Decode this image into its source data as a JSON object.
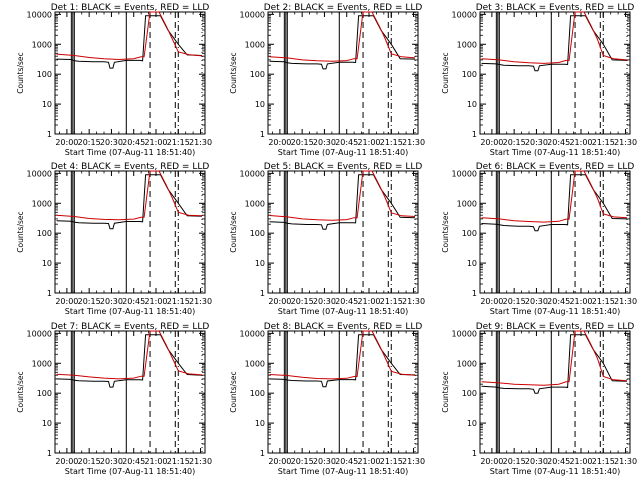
{
  "chart_data": [
    {
      "type": "line",
      "title": "Det 1: BLACK = Events, RED = LLD",
      "xlabel": "Start Time (07-Aug-11 18:51:40)",
      "ylabel": "Counts/sec",
      "x_ticks": [
        "20:00",
        "20:15",
        "20:30",
        "20:45",
        "21:00",
        "21:15",
        "21:30"
      ],
      "y_ticks": [
        "1",
        "10",
        "100",
        "1000",
        "10000"
      ],
      "xlim": [
        "19:52",
        "21:33"
      ],
      "ylim": [
        1,
        12000
      ],
      "y_scale": "log",
      "grid": false,
      "series": [
        {
          "color": "#000000",
          "x": [
            "19:53",
            "20:03",
            "20:05",
            "20:08",
            "20:18",
            "20:25",
            "20:28",
            "20:29",
            "20:31",
            "20:32",
            "20:40",
            "20:49",
            "20:51",
            "20:53",
            "21:03",
            "21:08",
            "21:15",
            "21:21",
            "21:31"
          ],
          "y": [
            320,
            310,
            280,
            270,
            260,
            260,
            250,
            160,
            160,
            250,
            290,
            290,
            280,
            9000,
            9000,
            3000,
            1000,
            440,
            420
          ]
        },
        {
          "color": "#cc0000",
          "x": [
            "19:53",
            "20:05",
            "20:15",
            "20:25",
            "20:35",
            "20:45",
            "20:50",
            "20:52",
            "20:56",
            "21:02",
            "21:07",
            "21:11",
            "21:15",
            "21:22",
            "21:31"
          ],
          "y": [
            470,
            420,
            360,
            330,
            310,
            330,
            380,
            380,
            14000,
            14000,
            4000,
            1500,
            560,
            450,
            410
          ]
        }
      ]
    },
    {
      "type": "line",
      "title": "Det 2: BLACK = Events, RED = LLD",
      "xlabel": "Start Time (07-Aug-11 18:51:40)",
      "ylabel": "Counts/sec",
      "x_ticks": [
        "20:00",
        "20:15",
        "20:30",
        "20:45",
        "21:00",
        "21:15",
        "21:30"
      ],
      "y_ticks": [
        "1",
        "10",
        "100",
        "1000",
        "10000"
      ],
      "xlim": [
        "19:52",
        "21:33"
      ],
      "ylim": [
        1,
        12000
      ],
      "y_scale": "log",
      "grid": false,
      "series": [
        {
          "color": "#000000",
          "x": [
            "19:53",
            "20:03",
            "20:05",
            "20:08",
            "20:18",
            "20:25",
            "20:28",
            "20:29",
            "20:31",
            "20:32",
            "20:40",
            "20:49",
            "20:51",
            "20:53",
            "21:03",
            "21:08",
            "21:15",
            "21:21",
            "21:31"
          ],
          "y": [
            270,
            260,
            240,
            230,
            220,
            220,
            215,
            150,
            150,
            220,
            250,
            250,
            245,
            9000,
            9000,
            3000,
            1000,
            330,
            320
          ]
        },
        {
          "color": "#cc0000",
          "x": [
            "19:53",
            "20:05",
            "20:15",
            "20:25",
            "20:35",
            "20:45",
            "20:50",
            "20:52",
            "20:56",
            "21:02",
            "21:07",
            "21:11",
            "21:15",
            "21:22",
            "21:31"
          ],
          "y": [
            380,
            350,
            300,
            280,
            270,
            285,
            330,
            330,
            14000,
            14000,
            4000,
            1500,
            480,
            380,
            350
          ]
        }
      ]
    },
    {
      "type": "line",
      "title": "Det 3: BLACK = Events, RED = LLD",
      "xlabel": "Start Time (07-Aug-11 18:51:40)",
      "ylabel": "Counts/sec",
      "x_ticks": [
        "20:00",
        "20:15",
        "20:30",
        "20:45",
        "21:00",
        "21:15",
        "21:30"
      ],
      "y_ticks": [
        "1",
        "10",
        "100",
        "1000",
        "10000"
      ],
      "xlim": [
        "19:52",
        "21:33"
      ],
      "ylim": [
        1,
        12000
      ],
      "y_scale": "log",
      "grid": false,
      "series": [
        {
          "color": "#000000",
          "x": [
            "19:53",
            "20:03",
            "20:05",
            "20:08",
            "20:18",
            "20:25",
            "20:28",
            "20:29",
            "20:31",
            "20:32",
            "20:40",
            "20:49",
            "20:51",
            "20:53",
            "21:03",
            "21:08",
            "21:15",
            "21:21",
            "21:31"
          ],
          "y": [
            230,
            220,
            210,
            200,
            190,
            190,
            185,
            130,
            130,
            190,
            215,
            215,
            210,
            9000,
            9000,
            3000,
            1000,
            300,
            290
          ]
        },
        {
          "color": "#cc0000",
          "x": [
            "19:53",
            "20:05",
            "20:15",
            "20:25",
            "20:35",
            "20:45",
            "20:50",
            "20:52",
            "20:56",
            "21:02",
            "21:07",
            "21:11",
            "21:15",
            "21:22",
            "21:31"
          ],
          "y": [
            330,
            300,
            260,
            240,
            230,
            245,
            290,
            290,
            14000,
            14000,
            4000,
            1500,
            420,
            330,
            300
          ]
        }
      ]
    },
    {
      "type": "line",
      "title": "Det 4: BLACK = Events, RED = LLD",
      "xlabel": "Start Time (07-Aug-11 18:51:40)",
      "ylabel": "Counts/sec",
      "x_ticks": [
        "20:00",
        "20:15",
        "20:30",
        "20:45",
        "21:00",
        "21:15",
        "21:30"
      ],
      "y_ticks": [
        "1",
        "10",
        "100",
        "1000",
        "10000"
      ],
      "xlim": [
        "19:52",
        "21:33"
      ],
      "ylim": [
        1,
        12000
      ],
      "y_scale": "log",
      "grid": false,
      "series": [
        {
          "color": "#000000",
          "x": [
            "19:53",
            "20:03",
            "20:05",
            "20:08",
            "20:18",
            "20:25",
            "20:28",
            "20:29",
            "20:31",
            "20:32",
            "20:40",
            "20:49",
            "20:51",
            "20:53",
            "21:03",
            "21:08",
            "21:15",
            "21:21",
            "21:31"
          ],
          "y": [
            260,
            250,
            235,
            225,
            215,
            215,
            210,
            140,
            140,
            215,
            245,
            245,
            240,
            9000,
            9000,
            3000,
            1000,
            380,
            370
          ]
        },
        {
          "color": "#cc0000",
          "x": [
            "19:53",
            "20:05",
            "20:15",
            "20:25",
            "20:35",
            "20:45",
            "20:50",
            "20:52",
            "20:56",
            "21:02",
            "21:07",
            "21:11",
            "21:15",
            "21:22",
            "21:31"
          ],
          "y": [
            400,
            360,
            310,
            290,
            280,
            295,
            340,
            340,
            14000,
            14000,
            4000,
            1500,
            500,
            400,
            380
          ]
        }
      ]
    },
    {
      "type": "line",
      "title": "Det 5: BLACK = Events, RED = LLD",
      "xlabel": "Start Time (07-Aug-11 18:51:40)",
      "ylabel": "Counts/sec",
      "x_ticks": [
        "20:00",
        "20:15",
        "20:30",
        "20:45",
        "21:00",
        "21:15",
        "21:30"
      ],
      "y_ticks": [
        "1",
        "10",
        "100",
        "1000",
        "10000"
      ],
      "xlim": [
        "19:52",
        "21:33"
      ],
      "ylim": [
        1,
        12000
      ],
      "y_scale": "log",
      "grid": false,
      "series": [
        {
          "color": "#000000",
          "x": [
            "19:53",
            "20:03",
            "20:05",
            "20:08",
            "20:18",
            "20:25",
            "20:28",
            "20:29",
            "20:31",
            "20:32",
            "20:40",
            "20:49",
            "20:51",
            "20:53",
            "21:03",
            "21:08",
            "21:15",
            "21:21",
            "21:31"
          ],
          "y": [
            240,
            230,
            215,
            205,
            195,
            195,
            190,
            135,
            135,
            195,
            225,
            225,
            220,
            9000,
            9000,
            3000,
            1000,
            340,
            330
          ]
        },
        {
          "color": "#cc0000",
          "x": [
            "19:53",
            "20:05",
            "20:15",
            "20:25",
            "20:35",
            "20:45",
            "20:50",
            "20:52",
            "20:56",
            "21:02",
            "21:07",
            "21:11",
            "21:15",
            "21:22",
            "21:31"
          ],
          "y": [
            390,
            350,
            300,
            280,
            270,
            285,
            330,
            330,
            14000,
            14000,
            4000,
            1500,
            480,
            380,
            360
          ]
        }
      ]
    },
    {
      "type": "line",
      "title": "Det 6: BLACK = Events, RED = LLD",
      "xlabel": "Start Time (07-Aug-11 18:51:40)",
      "ylabel": "Counts/sec",
      "x_ticks": [
        "20:00",
        "20:15",
        "20:30",
        "20:45",
        "21:00",
        "21:15",
        "21:30"
      ],
      "y_ticks": [
        "1",
        "10",
        "100",
        "1000",
        "10000"
      ],
      "xlim": [
        "19:52",
        "21:33"
      ],
      "ylim": [
        1,
        12000
      ],
      "y_scale": "log",
      "grid": false,
      "series": [
        {
          "color": "#000000",
          "x": [
            "19:53",
            "20:03",
            "20:05",
            "20:08",
            "20:18",
            "20:25",
            "20:28",
            "20:29",
            "20:31",
            "20:32",
            "20:40",
            "20:49",
            "20:51",
            "20:53",
            "21:03",
            "21:08",
            "21:15",
            "21:21",
            "21:31"
          ],
          "y": [
            210,
            200,
            190,
            180,
            170,
            170,
            165,
            120,
            120,
            170,
            195,
            195,
            190,
            9000,
            9000,
            3000,
            1000,
            310,
            300
          ]
        },
        {
          "color": "#cc0000",
          "x": [
            "19:53",
            "20:05",
            "20:15",
            "20:25",
            "20:35",
            "20:45",
            "20:50",
            "20:52",
            "20:56",
            "21:02",
            "21:07",
            "21:11",
            "21:15",
            "21:22",
            "21:31"
          ],
          "y": [
            330,
            300,
            260,
            245,
            235,
            250,
            295,
            295,
            14000,
            14000,
            4000,
            1500,
            440,
            350,
            330
          ]
        }
      ]
    },
    {
      "type": "line",
      "title": "Det 7: BLACK = Events, RED = LLD",
      "xlabel": "Start Time (07-Aug-11 18:51:40)",
      "ylabel": "Counts/sec",
      "x_ticks": [
        "20:00",
        "20:15",
        "20:30",
        "20:45",
        "21:00",
        "21:15",
        "21:30"
      ],
      "y_ticks": [
        "1",
        "10",
        "100",
        "1000",
        "10000"
      ],
      "xlim": [
        "19:52",
        "21:33"
      ],
      "ylim": [
        1,
        12000
      ],
      "y_scale": "log",
      "grid": false,
      "series": [
        {
          "color": "#000000",
          "x": [
            "19:53",
            "20:03",
            "20:05",
            "20:08",
            "20:18",
            "20:25",
            "20:28",
            "20:29",
            "20:31",
            "20:32",
            "20:40",
            "20:49",
            "20:51",
            "20:53",
            "21:03",
            "21:08",
            "21:15",
            "21:21",
            "21:31"
          ],
          "y": [
            300,
            290,
            270,
            260,
            250,
            250,
            245,
            160,
            160,
            250,
            280,
            280,
            275,
            9000,
            9000,
            3000,
            1000,
            420,
            400
          ]
        },
        {
          "color": "#cc0000",
          "x": [
            "19:53",
            "20:05",
            "20:15",
            "20:25",
            "20:35",
            "20:45",
            "20:50",
            "20:52",
            "20:56",
            "21:02",
            "21:07",
            "21:11",
            "21:15",
            "21:22",
            "21:31"
          ],
          "y": [
            430,
            400,
            350,
            320,
            300,
            320,
            370,
            370,
            14000,
            14000,
            4000,
            1500,
            560,
            440,
            410
          ]
        }
      ]
    },
    {
      "type": "line",
      "title": "Det 8: BLACK = Events, RED = LLD",
      "xlabel": "Start Time (07-Aug-11 18:51:40)",
      "ylabel": "Counts/sec",
      "x_ticks": [
        "20:00",
        "20:15",
        "20:30",
        "20:45",
        "21:00",
        "21:15",
        "21:30"
      ],
      "y_ticks": [
        "1",
        "10",
        "100",
        "1000",
        "10000"
      ],
      "xlim": [
        "19:52",
        "21:33"
      ],
      "ylim": [
        1,
        12000
      ],
      "y_scale": "log",
      "grid": false,
      "series": [
        {
          "color": "#000000",
          "x": [
            "19:53",
            "20:03",
            "20:05",
            "20:08",
            "20:18",
            "20:25",
            "20:28",
            "20:29",
            "20:31",
            "20:32",
            "20:40",
            "20:49",
            "20:51",
            "20:53",
            "21:03",
            "21:08",
            "21:15",
            "21:21",
            "21:31"
          ],
          "y": [
            300,
            290,
            275,
            265,
            255,
            255,
            250,
            165,
            165,
            255,
            285,
            285,
            280,
            9000,
            9000,
            3000,
            1000,
            420,
            410
          ]
        },
        {
          "color": "#cc0000",
          "x": [
            "19:53",
            "20:05",
            "20:15",
            "20:25",
            "20:35",
            "20:45",
            "20:50",
            "20:52",
            "20:56",
            "21:02",
            "21:07",
            "21:11",
            "21:15",
            "21:22",
            "21:31"
          ],
          "y": [
            420,
            390,
            340,
            310,
            300,
            315,
            360,
            360,
            14000,
            14000,
            4000,
            1500,
            540,
            430,
            400
          ]
        }
      ]
    },
    {
      "type": "line",
      "title": "Det 9: BLACK = Events, RED = LLD",
      "xlabel": "Start Time (07-Aug-11 18:51:40)",
      "ylabel": "Counts/sec",
      "x_ticks": [
        "20:00",
        "20:15",
        "20:30",
        "20:45",
        "21:00",
        "21:15",
        "21:30"
      ],
      "y_ticks": [
        "1",
        "10",
        "100",
        "1000",
        "10000"
      ],
      "xlim": [
        "19:52",
        "21:33"
      ],
      "ylim": [
        1,
        12000
      ],
      "y_scale": "log",
      "grid": false,
      "series": [
        {
          "color": "#000000",
          "x": [
            "19:53",
            "20:03",
            "20:05",
            "20:08",
            "20:18",
            "20:25",
            "20:28",
            "20:29",
            "20:31",
            "20:32",
            "20:40",
            "20:49",
            "20:51",
            "20:53",
            "21:03",
            "21:08",
            "21:15",
            "21:21",
            "21:31"
          ],
          "y": [
            170,
            160,
            150,
            145,
            140,
            140,
            135,
            100,
            100,
            140,
            160,
            160,
            155,
            9000,
            9000,
            3000,
            1000,
            260,
            250
          ]
        },
        {
          "color": "#cc0000",
          "x": [
            "19:53",
            "20:05",
            "20:15",
            "20:25",
            "20:35",
            "20:45",
            "20:50",
            "20:52",
            "20:56",
            "21:02",
            "21:07",
            "21:11",
            "21:15",
            "21:22",
            "21:31"
          ],
          "y": [
            240,
            220,
            200,
            190,
            185,
            200,
            240,
            240,
            14000,
            14000,
            4000,
            1500,
            360,
            280,
            260
          ]
        }
      ]
    }
  ],
  "markers": {
    "solid": [
      "20:03",
      "20:04",
      "20:05",
      "20:40"
    ],
    "dashed": [
      "20:56",
      "21:13"
    ],
    "dashdot": [
      "21:15"
    ],
    "dotted": [
      "21:31"
    ]
  }
}
